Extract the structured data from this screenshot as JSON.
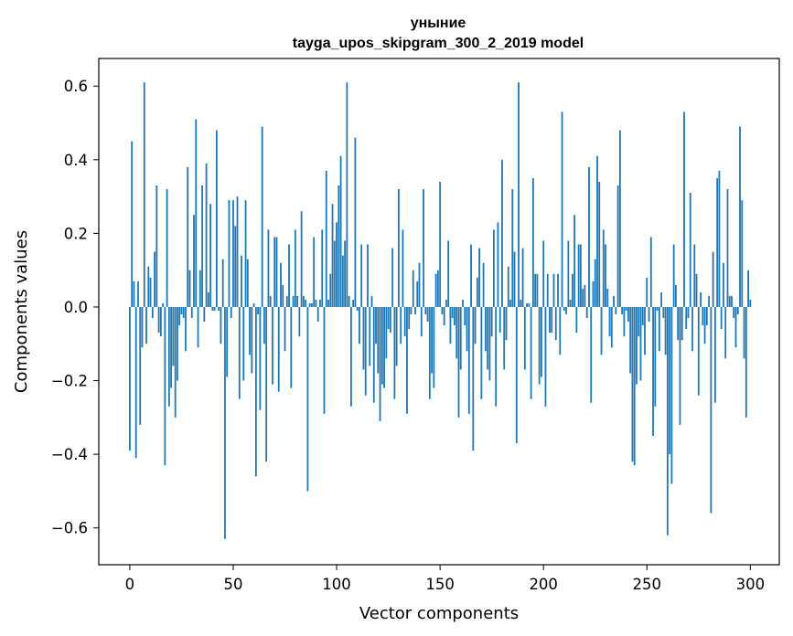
{
  "chart_data": {
    "type": "bar",
    "title": "уныние",
    "subtitle": "tayga_upos_skipgram_300_2_2019 model",
    "xlabel": "Vector components",
    "ylabel": "Components values",
    "xlim": [
      -15,
      314
    ],
    "ylim": [
      -0.7,
      0.675
    ],
    "xticks": [
      0,
      50,
      100,
      150,
      200,
      250,
      300
    ],
    "yticks": [
      -0.6,
      -0.4,
      -0.2,
      0.0,
      0.2,
      0.4,
      0.6
    ],
    "ytick_labels": [
      "−0.6",
      "−0.4",
      "−0.2",
      "0.0",
      "0.2",
      "0.4",
      "0.6"
    ],
    "grid": false,
    "color": "#1f77b4",
    "values": [
      -0.39,
      0.45,
      0.07,
      -0.41,
      0.07,
      -0.32,
      -0.11,
      0.61,
      -0.1,
      0.11,
      0.08,
      -0.03,
      0.15,
      0.33,
      -0.07,
      -0.08,
      0.01,
      -0.43,
      0.32,
      -0.27,
      -0.22,
      -0.16,
      -0.3,
      -0.2,
      -0.05,
      -0.02,
      -0.03,
      -0.12,
      0.38,
      0.1,
      -0.03,
      0.25,
      0.51,
      -0.11,
      0.1,
      0.33,
      -0.04,
      0.39,
      0.04,
      0.28,
      -0.01,
      -0.01,
      0.48,
      -0.01,
      -0.1,
      0.13,
      -0.63,
      -0.19,
      0.29,
      -0.03,
      0.29,
      0.22,
      0.3,
      -0.25,
      0.14,
      -0.2,
      0.29,
      0.13,
      -0.13,
      -0.18,
      0.01,
      -0.46,
      -0.02,
      -0.28,
      0.49,
      -0.1,
      -0.42,
      0.21,
      0.03,
      -0.21,
      0.19,
      0.19,
      -0.23,
      0.12,
      0.06,
      -0.12,
      0.03,
      0.17,
      -0.22,
      0.03,
      0.21,
      0.03,
      -0.08,
      0.26,
      0.03,
      0.02,
      -0.5,
      0.01,
      0.01,
      0.19,
      0.02,
      -0.04,
      0.02,
      0.21,
      -0.29,
      0.37,
      0.02,
      0.09,
      0.28,
      0.18,
      0.23,
      0.33,
      0.41,
      0.14,
      0.18,
      0.61,
      0.03,
      -0.27,
      0.02,
      0.46,
      -0.01,
      -0.1,
      0.17,
      -0.17,
      -0.24,
      0.17,
      -0.16,
      0.03,
      -0.26,
      -0.1,
      -0.18,
      -0.31,
      -0.21,
      -0.22,
      -0.14,
      -0.06,
      -0.07,
      0.16,
      -0.25,
      -0.16,
      0.32,
      -0.1,
      0.21,
      -0.08,
      -0.29,
      -0.06,
      -0.02,
      0.1,
      -0.02,
      0.07,
      0.12,
      -0.08,
      0.32,
      -0.02,
      -0.04,
      -0.25,
      -0.18,
      -0.22,
      0.09,
      0.1,
      0.34,
      -0.02,
      -0.05,
      0.02,
      0.18,
      -0.1,
      -0.03,
      -0.05,
      -0.14,
      -0.3,
      -0.17,
      0.02,
      -0.05,
      -0.12,
      -0.29,
      0.17,
      -0.39,
      -0.1,
      0.08,
      0.16,
      -0.25,
      0.12,
      -0.12,
      -0.17,
      -0.2,
      -0.08,
      0.21,
      -0.27,
      0.23,
      -0.07,
      0.4,
      -0.17,
      -0.09,
      0.11,
      0.02,
      0.32,
      0.15,
      -0.37,
      0.61,
      0.02,
      0.16,
      -0.17,
      0.01,
      0.01,
      -0.25,
      0.35,
      0.09,
      0.09,
      -0.21,
      -0.19,
      0.18,
      -0.27,
      0.09,
      -0.07,
      -0.07,
      0.09,
      -0.09,
      0.09,
      -0.13,
      0.53,
      -0.01,
      -0.02,
      0.18,
      0.02,
      0.09,
      0.25,
      -0.07,
      0.17,
      0.17,
      0.05,
      0.06,
      -0.03,
      0.38,
      -0.26,
      0.07,
      0.13,
      0.41,
      0.34,
      -0.13,
      0.21,
      0.17,
      0.05,
      -0.08,
      -0.11,
      0.03,
      -0.02,
      0.33,
      0.48,
      -0.02,
      -0.08,
      -0.01,
      -0.04,
      -0.18,
      -0.42,
      -0.43,
      -0.21,
      -0.08,
      -0.2,
      -0.05,
      -0.13,
      0.08,
      -0.04,
      0.19,
      -0.35,
      -0.27,
      -0.01,
      -0.12,
      0.04,
      -0.03,
      -0.13,
      -0.62,
      -0.4,
      -0.48,
      0.17,
      0.06,
      -0.09,
      -0.32,
      -0.09,
      0.53,
      -0.06,
      -0.03,
      0.31,
      -0.12,
      0.17,
      0.09,
      -0.24,
      0.04,
      -0.05,
      -0.1,
      -0.05,
      0.03,
      -0.56,
      0.15,
      -0.26,
      0.35,
      0.37,
      -0.06,
      0.12,
      -0.14,
      0.32,
      0.03,
      0.03,
      -0.03,
      -0.11,
      -0.02,
      0.49,
      0.29,
      -0.14,
      -0.3,
      0.1,
      0.02
    ]
  }
}
